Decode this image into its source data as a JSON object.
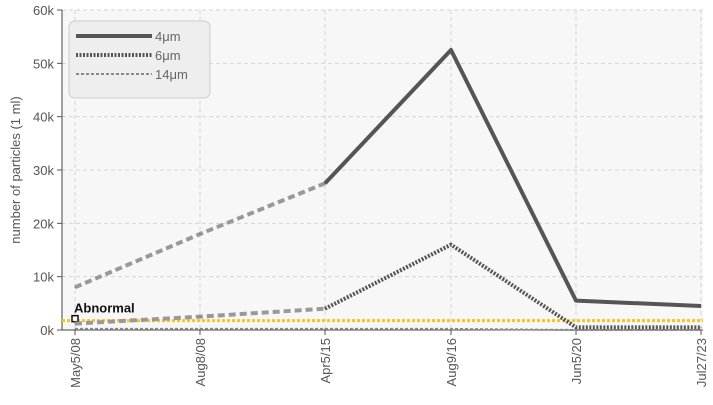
{
  "chart_data": {
    "type": "line",
    "ylabel": "number of particles (1 ml)",
    "ylim": [
      0,
      60000
    ],
    "yticks": [
      0,
      10000,
      20000,
      30000,
      40000,
      50000,
      60000
    ],
    "ytick_labels": [
      "0k",
      "10k",
      "20k",
      "30k",
      "40k",
      "50k",
      "60k"
    ],
    "xticks": [
      "May5/08",
      "Aug8/08",
      "Apr5/15",
      "Aug9/16",
      "Jun5/20",
      "Jul27/23"
    ],
    "grid": true,
    "legend_position": "top-left",
    "series": [
      {
        "name": "4μm",
        "color": "#555555",
        "values": [
          8000,
          18000,
          27500,
          52500,
          5500,
          4500
        ]
      },
      {
        "name": "6μm",
        "color": "#555555",
        "values": [
          1200,
          2500,
          4000,
          16000,
          500,
          500
        ]
      },
      {
        "name": "14μm",
        "color": "#888888",
        "values": [
          200,
          200,
          200,
          200,
          0,
          0
        ]
      }
    ],
    "threshold": {
      "label": "Abnormal",
      "value": 2500,
      "color": "#f5c518"
    }
  }
}
